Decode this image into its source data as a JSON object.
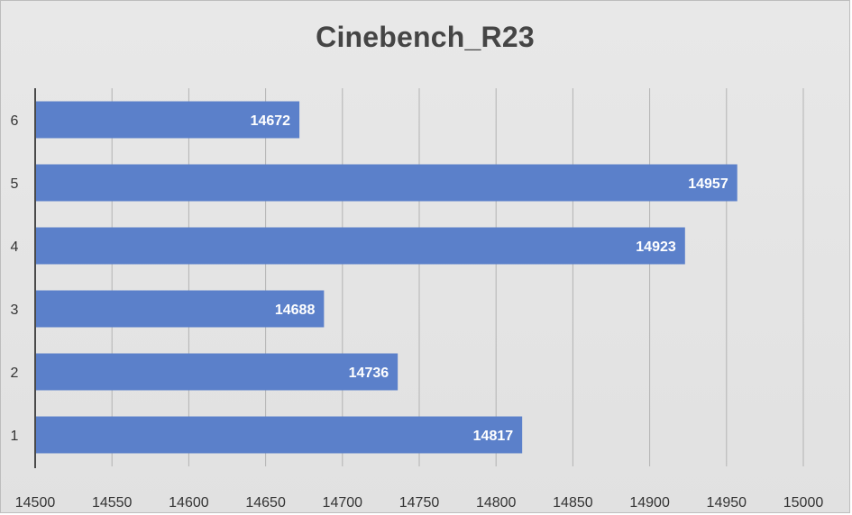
{
  "chart_data": {
    "type": "bar",
    "orientation": "horizontal",
    "title": "Cinebench_R23",
    "categories": [
      "1",
      "2",
      "3",
      "4",
      "5",
      "6"
    ],
    "values": [
      14817,
      14736,
      14688,
      14923,
      14957,
      14672
    ],
    "xlim": [
      14500,
      15000
    ],
    "x_ticks": [
      14500,
      14550,
      14600,
      14650,
      14700,
      14750,
      14800,
      14850,
      14900,
      14950,
      15000
    ],
    "xlabel": "",
    "ylabel": "",
    "grid": "vertical",
    "data_labels": true,
    "legend": "none",
    "bar_color": "#5b80ca",
    "background_color": "#e3e3e3"
  }
}
